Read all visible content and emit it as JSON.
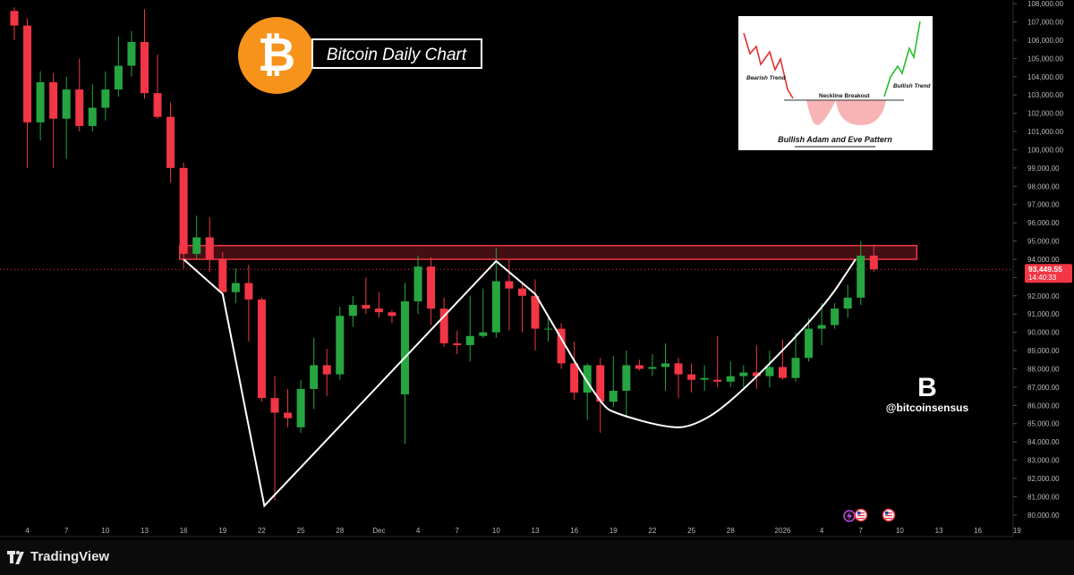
{
  "title": "Bitcoin Daily Chart",
  "watermark_handle": "@bitcoinsensus",
  "brand": "TradingView",
  "logo_letter": "B",
  "colors": {
    "up": "#26a541",
    "down": "#f23645",
    "pattern_line": "#ffffff",
    "price_tag": "#f23645",
    "zone": "#f23645",
    "bitcoin_orange": "#f7931a"
  },
  "icons": [
    "bitcoin-icon",
    "tradingview-logo-icon",
    "bitcoinsensus-logo-icon",
    "lightning-event-icon",
    "us-flag-event-icon"
  ],
  "chart_data": {
    "type": "candlestick",
    "ylim": [
      79600,
      108200
    ],
    "y_ticks": [
      "80,000.00",
      "81,000.00",
      "82,000.00",
      "83,000.00",
      "84,000.00",
      "85,000.00",
      "86,000.00",
      "87,000.00",
      "88,000.00",
      "89,000.00",
      "90,000.00",
      "91,000.00",
      "92,000.00",
      "93,000.00",
      "94,000.00",
      "95,000.00",
      "96,000.00",
      "97,000.00",
      "98,000.00",
      "99,000.00",
      "100,000.00",
      "101,000.00",
      "102,000.00",
      "103,000.00",
      "104,000.00",
      "105,000.00",
      "106,000.00",
      "107,000.00",
      "108,000.00"
    ],
    "x_ticks": [
      {
        "label": "4",
        "i": 1
      },
      {
        "label": "7",
        "i": 4
      },
      {
        "label": "10",
        "i": 7
      },
      {
        "label": "13",
        "i": 10
      },
      {
        "label": "16",
        "i": 13
      },
      {
        "label": "19",
        "i": 16
      },
      {
        "label": "22",
        "i": 19
      },
      {
        "label": "25",
        "i": 22
      },
      {
        "label": "28",
        "i": 25
      },
      {
        "label": "Dec",
        "i": 28
      },
      {
        "label": "4",
        "i": 31
      },
      {
        "label": "7",
        "i": 34
      },
      {
        "label": "10",
        "i": 37
      },
      {
        "label": "13",
        "i": 40
      },
      {
        "label": "16",
        "i": 43
      },
      {
        "label": "19",
        "i": 46
      },
      {
        "label": "22",
        "i": 49
      },
      {
        "label": "25",
        "i": 52
      },
      {
        "label": "28",
        "i": 55
      },
      {
        "label": "2026",
        "i": 59
      },
      {
        "label": "4",
        "i": 62
      },
      {
        "label": "7",
        "i": 65
      },
      {
        "label": "10",
        "i": 68
      },
      {
        "label": "13",
        "i": 71
      },
      {
        "label": "16",
        "i": 74
      },
      {
        "label": "19",
        "i": 77
      }
    ],
    "candles": [
      [
        107600,
        107800,
        106000,
        106800
      ],
      [
        106800,
        107200,
        99000,
        101500
      ],
      [
        101500,
        104300,
        100500,
        103700
      ],
      [
        103700,
        104200,
        99000,
        101700
      ],
      [
        101700,
        104000,
        99500,
        103300
      ],
      [
        103300,
        105000,
        101000,
        101300
      ],
      [
        101300,
        103600,
        101000,
        102300
      ],
      [
        102300,
        104300,
        101600,
        103300
      ],
      [
        103300,
        106200,
        102900,
        104600
      ],
      [
        104600,
        106500,
        104000,
        105900
      ],
      [
        105900,
        107700,
        102800,
        103100
      ],
      [
        103100,
        105200,
        101700,
        101800
      ],
      [
        101800,
        102600,
        98200,
        99000
      ],
      [
        99000,
        99300,
        93500,
        94300
      ],
      [
        94300,
        96400,
        94000,
        95200
      ],
      [
        95200,
        96300,
        93300,
        94000
      ],
      [
        94000,
        94400,
        92000,
        92200
      ],
      [
        92200,
        93500,
        91600,
        92700
      ],
      [
        92700,
        93700,
        89500,
        91800
      ],
      [
        91800,
        91900,
        86200,
        86400
      ],
      [
        86400,
        87600,
        80800,
        85600
      ],
      [
        85600,
        86900,
        84800,
        85300
      ],
      [
        84800,
        87400,
        84500,
        86900
      ],
      [
        86900,
        89700,
        85800,
        88200
      ],
      [
        88200,
        89100,
        86500,
        87700
      ],
      [
        87700,
        91400,
        87400,
        90900
      ],
      [
        90900,
        92000,
        90300,
        91500
      ],
      [
        91500,
        93000,
        91000,
        91300
      ],
      [
        91300,
        92200,
        90800,
        91100
      ],
      [
        91100,
        91200,
        90500,
        90900
      ],
      [
        86600,
        92700,
        83900,
        91700
      ],
      [
        91700,
        94200,
        91000,
        93600
      ],
      [
        93600,
        94100,
        90400,
        91300
      ],
      [
        91300,
        91900,
        89200,
        89400
      ],
      [
        89400,
        90100,
        88800,
        89300
      ],
      [
        89300,
        92000,
        88400,
        89800
      ],
      [
        89800,
        92400,
        89700,
        90000
      ],
      [
        90000,
        94600,
        89700,
        92800
      ],
      [
        92800,
        94000,
        90100,
        92400
      ],
      [
        92400,
        92700,
        90000,
        92000
      ],
      [
        92000,
        92900,
        89000,
        90200
      ],
      [
        90200,
        90800,
        89500,
        90200
      ],
      [
        90200,
        90500,
        88000,
        88300
      ],
      [
        88300,
        89500,
        86300,
        86700
      ],
      [
        86700,
        88300,
        85200,
        88200
      ],
      [
        88200,
        88600,
        84500,
        86200
      ],
      [
        86200,
        88700,
        85900,
        86800
      ],
      [
        86800,
        89000,
        85300,
        88200
      ],
      [
        88200,
        88500,
        87900,
        88000
      ],
      [
        88000,
        88800,
        87600,
        88100
      ],
      [
        88100,
        89400,
        86800,
        88300
      ],
      [
        88300,
        88600,
        86400,
        87700
      ],
      [
        87700,
        88300,
        86700,
        87400
      ],
      [
        87400,
        88200,
        86800,
        87500
      ],
      [
        87400,
        89800,
        87000,
        87300
      ],
      [
        87300,
        88400,
        87000,
        87600
      ],
      [
        87600,
        88200,
        87000,
        87800
      ],
      [
        87800,
        89300,
        86900,
        87600
      ],
      [
        87600,
        89000,
        87000,
        88100
      ],
      [
        88100,
        89600,
        87400,
        87500
      ],
      [
        87500,
        90000,
        87300,
        88600
      ],
      [
        88600,
        90800,
        88400,
        90200
      ],
      [
        90200,
        91600,
        89300,
        90400
      ],
      [
        90400,
        91600,
        90200,
        91300
      ],
      [
        91300,
        92600,
        90800,
        91900
      ],
      [
        91900,
        95000,
        91500,
        94200
      ],
      [
        94200,
        94800,
        93300,
        93449
      ]
    ],
    "last_price_label": "93,449.55",
    "countdown_label": "14:40:33",
    "resistance_zone": [
      94000,
      94750
    ],
    "pattern_points": [
      [
        13,
        94000
      ],
      [
        16,
        92100
      ],
      [
        19.2,
        80500
      ],
      [
        37,
        93900
      ],
      [
        40,
        92100
      ],
      [
        45,
        86000
      ],
      [
        46.4,
        85500
      ],
      [
        50,
        84800
      ],
      [
        52,
        84800
      ],
      [
        55,
        86100
      ],
      [
        62,
        91200
      ],
      [
        64.6,
        94000
      ]
    ],
    "inset": {
      "bearish_label": "Bearish Trend",
      "neckline_label": "Neckline Breakout",
      "bullish_label": "Bullish Trend",
      "caption": "Bullish Adam and Eve Pattern"
    }
  }
}
